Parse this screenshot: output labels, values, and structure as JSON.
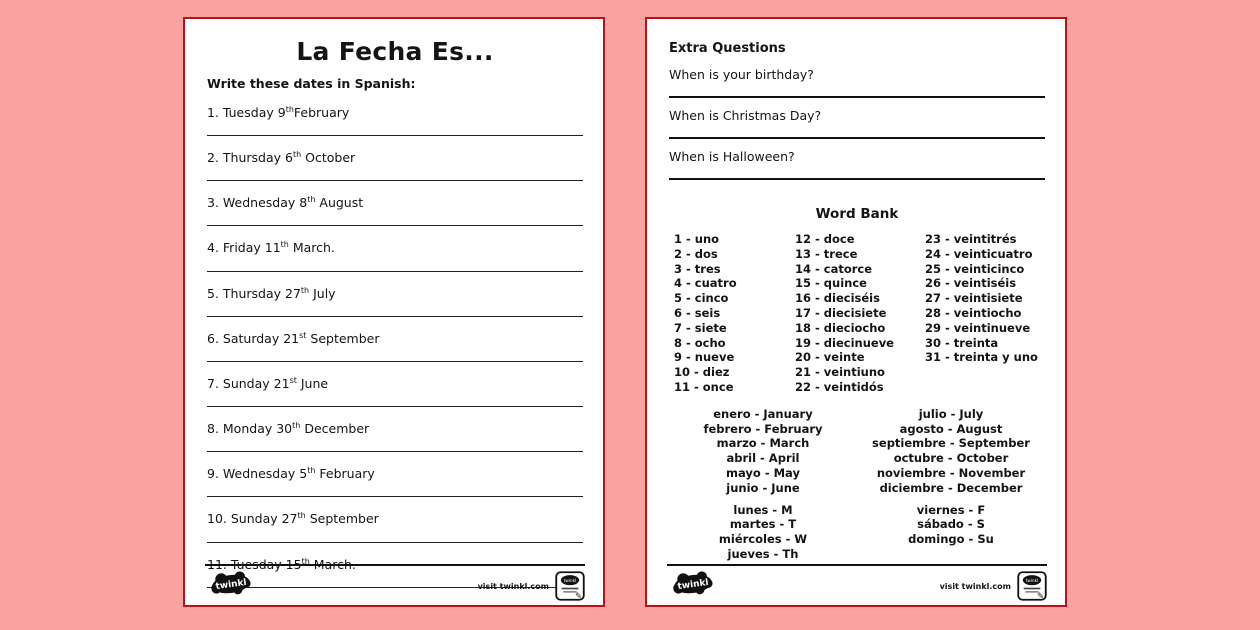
{
  "colors": {
    "background": "#f9a2a2",
    "page_border": "#b61219",
    "text": "#141414",
    "line": "#222222"
  },
  "footer": {
    "logo_text": "twinkl",
    "visit": "visit twinkl.com",
    "badge_text": "twinkl",
    "badge_icon": "pencil-icon"
  },
  "left_page": {
    "title": "La Fecha Es...",
    "instruction": "Write these dates in Spanish:",
    "items": [
      {
        "before": "1. Tuesday 9",
        "sup": "th",
        "after": "February"
      },
      {
        "before": "2. Thursday 6",
        "sup": "th",
        "after": " October"
      },
      {
        "before": "3. Wednesday 8",
        "sup": "th",
        "after": " August"
      },
      {
        "before": "4. Friday 11",
        "sup": "th",
        "after": " March."
      },
      {
        "before": "5. Thursday 27",
        "sup": "th",
        "after": " July"
      },
      {
        "before": "6. Saturday 21",
        "sup": "st",
        "after": " September"
      },
      {
        "before": "7. Sunday 21",
        "sup": "st",
        "after": " June"
      },
      {
        "before": "8. Monday 30",
        "sup": "th",
        "after": " December"
      },
      {
        "before": "9. Wednesday 5",
        "sup": "th",
        "after": " February"
      },
      {
        "before": "10. Sunday 27",
        "sup": "th",
        "after": " September"
      },
      {
        "before": "11. Tuesday 15",
        "sup": "th",
        "after": " March."
      }
    ]
  },
  "right_page": {
    "heading": "Extra Questions",
    "questions": [
      "When is your birthday?",
      "When is Christmas Day?",
      "When is Halloween?"
    ],
    "word_bank": {
      "title": "Word Bank",
      "columns": [
        [
          "1 - uno",
          "2 - dos",
          "3 - tres",
          "4 - cuatro",
          "5 - cinco",
          "6 - seis",
          "7 - siete",
          "8 - ocho",
          "9 - nueve",
          "10 - diez",
          "11 - once"
        ],
        [
          "12 - doce",
          "13 - trece",
          "14 - catorce",
          "15 - quince",
          "16 - dieciséis",
          "17 - diecisiete",
          "18 - dieciocho",
          "19 - diecinueve",
          "20 - veinte",
          "21 - veintiuno",
          "22 - veintidós"
        ],
        [
          "23 - veintitrés",
          "24 - veinticuatro",
          "25 - veinticinco",
          "26 - veintiséis",
          "27 - veintisiete",
          "28 - veintiocho",
          "29 - veintinueve",
          "30 - treinta",
          "31 - treinta y uno"
        ]
      ]
    },
    "months": {
      "left": [
        "enero - January",
        "febrero - February",
        "marzo - March",
        "abril - April",
        "mayo - May",
        "junio - June"
      ],
      "right": [
        "julio - July",
        "agosto - August",
        "septiembre - September",
        "octubre - October",
        "noviembre - November",
        "diciembre - December"
      ]
    },
    "days": {
      "left": [
        "lunes - M",
        "martes - T",
        "miércoles - W",
        "jueves - Th"
      ],
      "right": [
        "viernes - F",
        "sábado - S",
        "domingo - Su"
      ]
    }
  }
}
